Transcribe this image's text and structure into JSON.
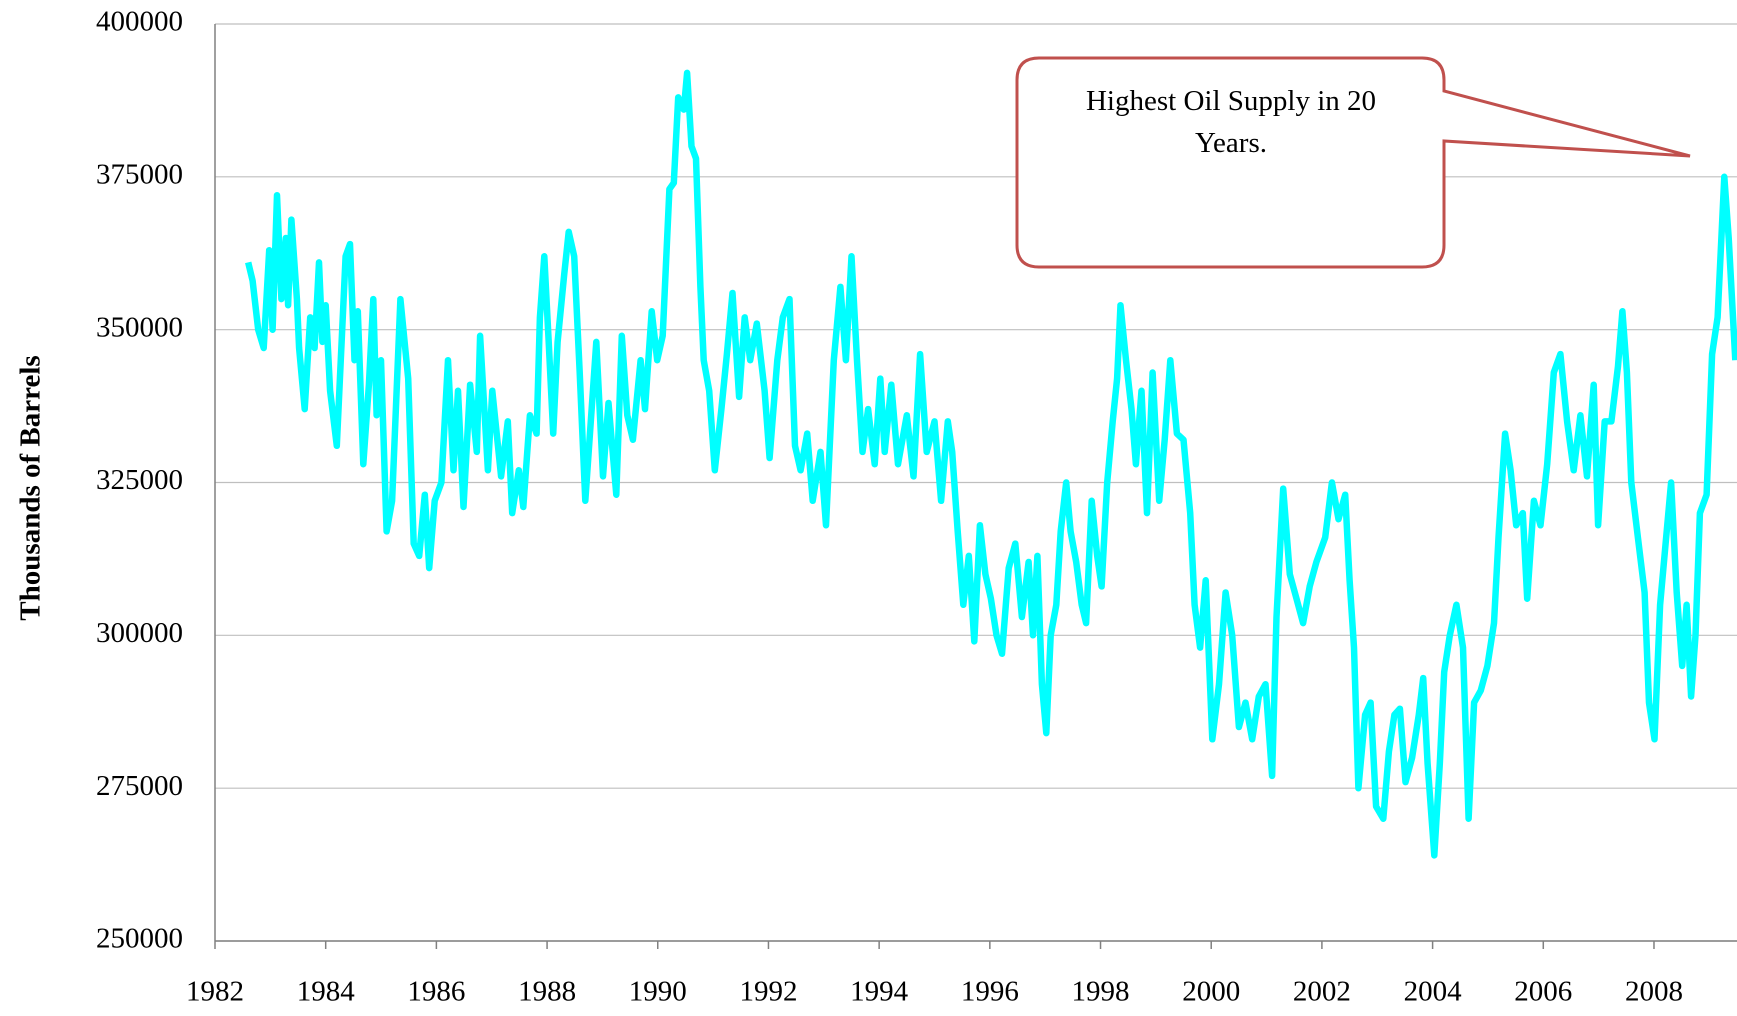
{
  "chart_data": {
    "type": "line",
    "y_label": "Thousands of Barrels",
    "annotation": "Highest Oil Supply in 20 Years.",
    "xlim": [
      1982,
      2009.5
    ],
    "xticks": [
      1982,
      1984,
      1986,
      1988,
      1990,
      1992,
      1994,
      1996,
      1998,
      2000,
      2002,
      2004,
      2006,
      2008
    ],
    "ylim": [
      250000,
      400000
    ],
    "yticks": [
      250000,
      275000,
      300000,
      325000,
      350000,
      375000,
      400000
    ],
    "grid": true,
    "series": [
      {
        "color": "#00ffff",
        "x": [
          1982.6,
          1982.68,
          1982.78,
          1982.88,
          1982.98,
          1983.04,
          1983.12,
          1983.2,
          1983.28,
          1983.32,
          1983.38,
          1983.48,
          1983.52,
          1983.62,
          1983.72,
          1983.8,
          1983.88,
          1983.94,
          1984.0,
          1984.08,
          1984.2,
          1984.36,
          1984.44,
          1984.52,
          1984.58,
          1984.68,
          1984.78,
          1984.86,
          1984.92,
          1985.0,
          1985.1,
          1985.2,
          1985.35,
          1985.49,
          1985.59,
          1985.69,
          1985.79,
          1985.87,
          1985.97,
          1986.09,
          1986.21,
          1986.31,
          1986.39,
          1986.49,
          1986.61,
          1986.73,
          1986.79,
          1986.93,
          1987.01,
          1987.17,
          1987.29,
          1987.37,
          1987.49,
          1987.57,
          1987.69,
          1987.81,
          1987.87,
          1987.95,
          1988.03,
          1988.11,
          1988.19,
          1988.31,
          1988.39,
          1988.49,
          1988.59,
          1988.69,
          1988.79,
          1988.89,
          1989.01,
          1989.11,
          1989.25,
          1989.35,
          1989.45,
          1989.55,
          1989.69,
          1989.77,
          1989.89,
          1989.99,
          1990.09,
          1990.21,
          1990.29,
          1990.37,
          1990.47,
          1990.53,
          1990.61,
          1990.69,
          1990.77,
          1990.83,
          1990.93,
          1991.03,
          1991.15,
          1991.25,
          1991.35,
          1991.47,
          1991.57,
          1991.67,
          1991.79,
          1991.93,
          1992.02,
          1992.16,
          1992.26,
          1992.38,
          1992.48,
          1992.58,
          1992.7,
          1992.8,
          1992.94,
          1993.04,
          1993.18,
          1993.3,
          1993.4,
          1993.5,
          1993.6,
          1993.7,
          1993.8,
          1993.92,
          1994.02,
          1994.1,
          1994.22,
          1994.34,
          1994.5,
          1994.62,
          1994.74,
          1994.86,
          1995.0,
          1995.12,
          1995.24,
          1995.32,
          1995.42,
          1995.52,
          1995.62,
          1995.72,
          1995.82,
          1995.92,
          1996.02,
          1996.12,
          1996.22,
          1996.34,
          1996.46,
          1996.58,
          1996.7,
          1996.78,
          1996.86,
          1996.94,
          1997.02,
          1997.1,
          1997.2,
          1997.28,
          1997.38,
          1997.46,
          1997.56,
          1997.66,
          1997.74,
          1997.84,
          1997.94,
          1998.02,
          1998.12,
          1998.22,
          1998.3,
          1998.36,
          1998.46,
          1998.56,
          1998.64,
          1998.74,
          1998.84,
          1998.94,
          1999.06,
          1999.16,
          1999.26,
          1999.38,
          1999.5,
          1999.62,
          1999.7,
          1999.8,
          1999.9,
          2000.02,
          2000.14,
          2000.26,
          2000.38,
          2000.5,
          2000.62,
          2000.74,
          2000.86,
          2000.98,
          2001.1,
          2001.18,
          2001.3,
          2001.42,
          2001.54,
          2001.66,
          2001.78,
          2001.9,
          2002.06,
          2002.18,
          2002.3,
          2002.42,
          2002.5,
          2002.58,
          2002.66,
          2002.78,
          2002.88,
          2002.98,
          2003.11,
          2003.21,
          2003.31,
          2003.41,
          2003.51,
          2003.63,
          2003.75,
          2003.83,
          2003.91,
          2004.03,
          2004.13,
          2004.21,
          2004.31,
          2004.43,
          2004.55,
          2004.65,
          2004.75,
          2004.87,
          2004.99,
          2005.11,
          2005.19,
          2005.31,
          2005.41,
          2005.51,
          2005.63,
          2005.71,
          2005.83,
          2005.95,
          2006.07,
          2006.19,
          2006.31,
          2006.43,
          2006.55,
          2006.67,
          2006.79,
          2006.91,
          2006.99,
          2007.11,
          2007.23,
          2007.35,
          2007.43,
          2007.51,
          2007.59,
          2007.71,
          2007.83,
          2007.91,
          2008.01,
          2008.11,
          2008.21,
          2008.31,
          2008.41,
          2008.51,
          2008.59,
          2008.67,
          2008.75,
          2008.83,
          2008.95,
          2009.05,
          2009.15,
          2009.27,
          2009.35,
          2009.47
        ],
        "values": [
          361000,
          358000,
          350000,
          347000,
          363000,
          350000,
          372000,
          355000,
          365000,
          354000,
          368000,
          355000,
          347000,
          337000,
          352000,
          347000,
          361000,
          348000,
          354000,
          340000,
          331000,
          362000,
          364000,
          345000,
          353000,
          328000,
          341000,
          355000,
          336000,
          345000,
          317000,
          322000,
          355000,
          342000,
          315000,
          313000,
          323000,
          311000,
          322000,
          325000,
          345000,
          327000,
          340000,
          321000,
          341000,
          330000,
          349000,
          327000,
          340000,
          326000,
          335000,
          320000,
          327000,
          321000,
          336000,
          333000,
          352000,
          362000,
          348000,
          333000,
          348000,
          359000,
          366000,
          362000,
          343000,
          322000,
          335000,
          348000,
          326000,
          338000,
          323000,
          349000,
          336000,
          332000,
          345000,
          337000,
          353000,
          345000,
          349000,
          373000,
          374000,
          388000,
          386000,
          392000,
          380000,
          378000,
          357000,
          345000,
          340000,
          327000,
          337000,
          346000,
          356000,
          339000,
          352000,
          345000,
          351000,
          340000,
          329000,
          345000,
          352000,
          355000,
          331000,
          327000,
          333000,
          322000,
          330000,
          318000,
          345000,
          357000,
          345000,
          362000,
          345000,
          330000,
          337000,
          328000,
          342000,
          330000,
          341000,
          328000,
          336000,
          326000,
          346000,
          330000,
          335000,
          322000,
          335000,
          330000,
          317000,
          305000,
          313000,
          299000,
          318000,
          310000,
          306000,
          300000,
          297000,
          311000,
          315000,
          303000,
          312000,
          300000,
          313000,
          292000,
          284000,
          300000,
          305000,
          317000,
          325000,
          317000,
          312000,
          305000,
          302000,
          322000,
          313000,
          308000,
          325000,
          335000,
          342000,
          354000,
          345000,
          337000,
          328000,
          340000,
          320000,
          343000,
          322000,
          332000,
          345000,
          333000,
          332000,
          320000,
          305000,
          298000,
          309000,
          283000,
          292000,
          307000,
          300000,
          285000,
          289000,
          283000,
          290000,
          292000,
          277000,
          303000,
          324000,
          310000,
          306000,
          302000,
          308000,
          312000,
          316000,
          325000,
          319000,
          323000,
          309000,
          298000,
          275000,
          287000,
          289000,
          272000,
          270000,
          281000,
          287000,
          288000,
          276000,
          280000,
          287000,
          293000,
          279000,
          264000,
          279000,
          294000,
          300000,
          305000,
          298000,
          270000,
          289000,
          291000,
          295000,
          302000,
          316000,
          333000,
          327000,
          318000,
          320000,
          306000,
          322000,
          318000,
          328000,
          343000,
          346000,
          335000,
          327000,
          336000,
          326000,
          341000,
          318000,
          335000,
          335000,
          344000,
          353000,
          343000,
          325000,
          316000,
          307000,
          289000,
          283000,
          305000,
          315000,
          325000,
          307000,
          295000,
          305000,
          290000,
          300000,
          320000,
          323000,
          346000,
          352000,
          375000,
          365000,
          345000
        ]
      }
    ]
  }
}
